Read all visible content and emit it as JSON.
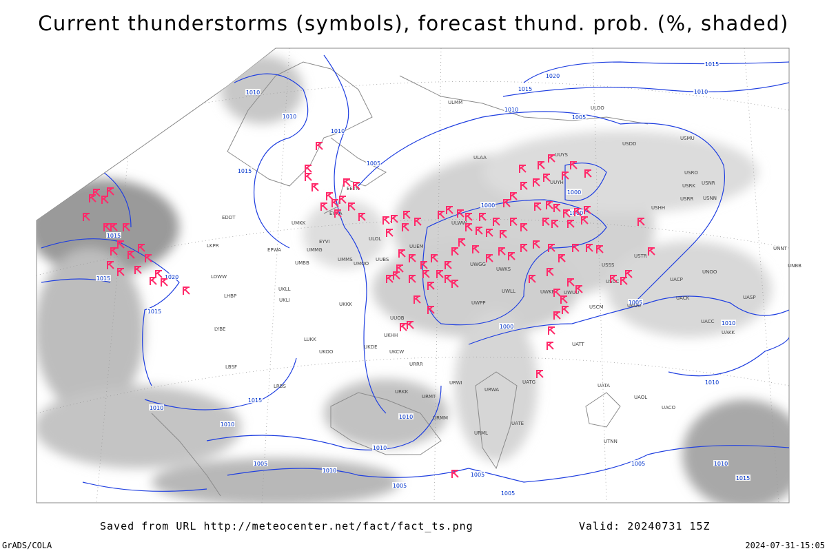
{
  "title": "Current thunderstorms (symbols), forecast thund. prob. (%, shaded)",
  "footer": {
    "source": "Saved from URL http://meteocenter.net/fact/fact_ts.png",
    "valid": "Valid: 20240731 15Z",
    "credit": "GrADS/COLA",
    "timestamp": "2024-07-31-15:05"
  },
  "isobar_labels": [
    "1010",
    "1010",
    "1010",
    "1015",
    "1005",
    "1015",
    "1020",
    "1015",
    "1010",
    "1010",
    "1005",
    "1000",
    "1000",
    "1000",
    "1015",
    "1015",
    "1020",
    "1015",
    "1000",
    "1005",
    "1010",
    "1010",
    "1015",
    "1010",
    "1010",
    "1010",
    "1010",
    "1010",
    "1005",
    "1005",
    "1005",
    "1005",
    "1005",
    "1010",
    "1015"
  ],
  "stations": [
    "ULMM",
    "ULOO",
    "USDD",
    "USMU",
    "ULAA",
    "UUYS",
    "USRO",
    "USRK",
    "USNR",
    "USRR",
    "USNN",
    "USHH",
    "UUYH",
    "EETN",
    "EVRA",
    "EDDT",
    "UMKK",
    "ULWW",
    "ULOL",
    "EPWA",
    "EYVI",
    "UMMG",
    "UMBB",
    "UMMS",
    "UMOO",
    "UUBS",
    "UUEM",
    "UWGG",
    "UWKS",
    "USSS",
    "USTR",
    "UNNT",
    "UNBB",
    "UNOO",
    "USCC",
    "UACP",
    "UACK",
    "UASP",
    "LKPR",
    "LOWW",
    "LHBP",
    "UKLL",
    "UKLI",
    "UKKK",
    "UWPP",
    "UWLL",
    "UWKB",
    "UWUU",
    "USCM",
    "UAUU",
    "UUOB",
    "UKHH",
    "UKDE",
    "UKOO",
    "LUKK",
    "LRBS",
    "LBSF",
    "LYBE",
    "UACC",
    "UAKK",
    "UATT",
    "UATG",
    "UATA",
    "UAOL",
    "UACO",
    "URWA",
    "URWI",
    "URMT",
    "URKK",
    "URRR",
    "UKCW",
    "UTNN",
    "UATE",
    "URML",
    "URMM"
  ]
}
